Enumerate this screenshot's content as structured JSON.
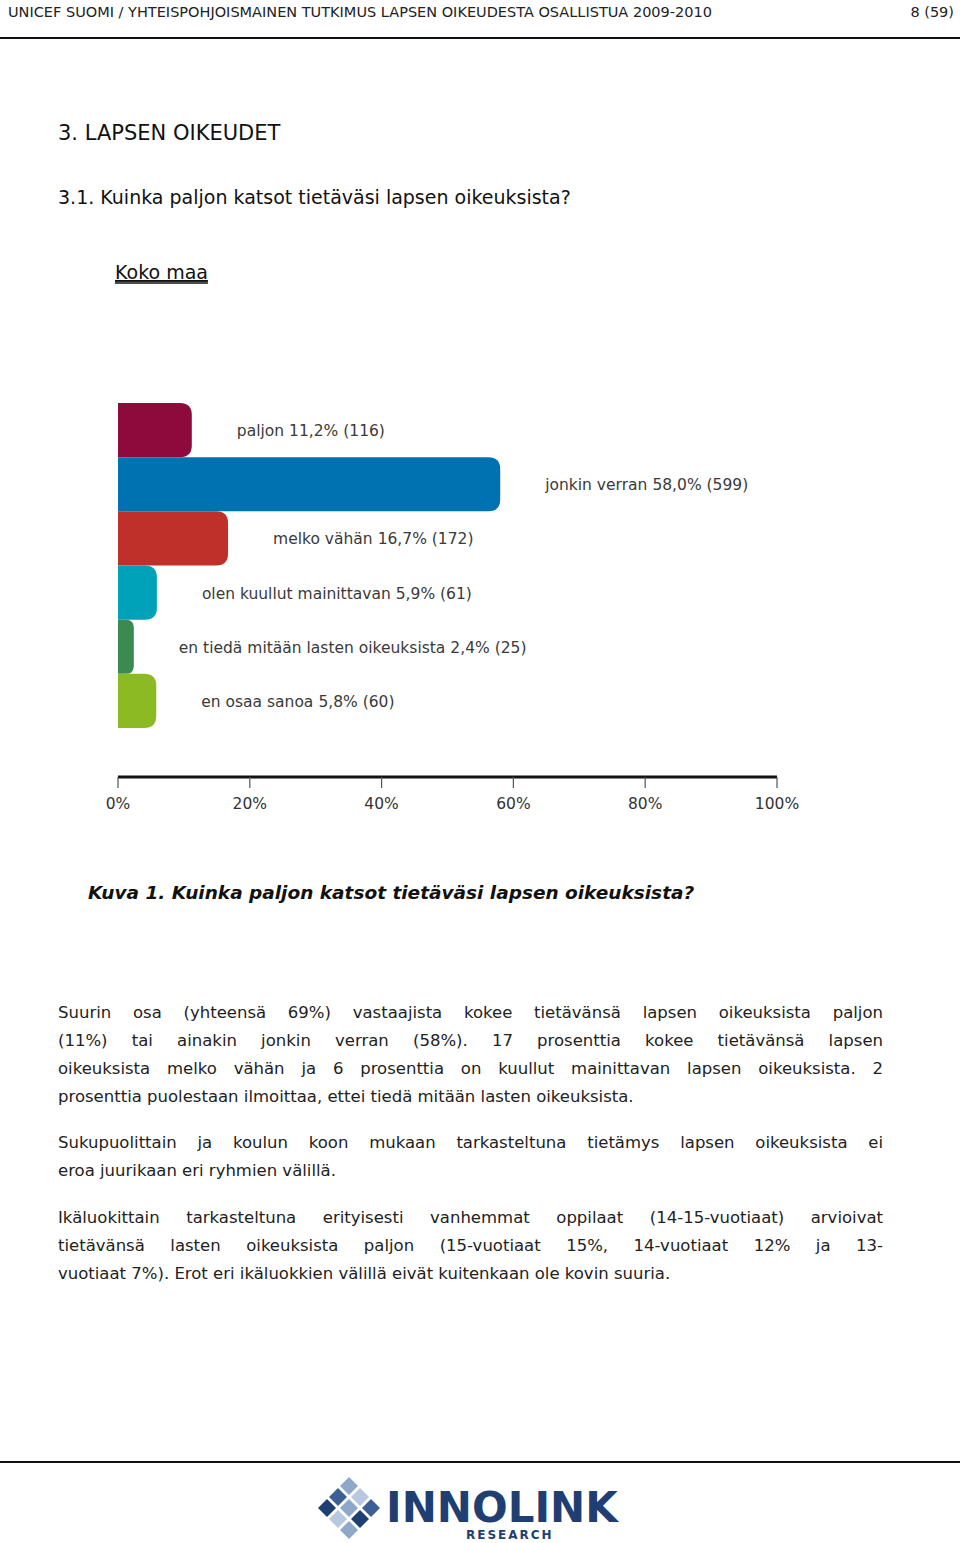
{
  "header": {
    "title": "UNICEF SUOMI / YHTEISPOHJOISMAINEN TUTKIMUS LAPSEN OIKEUDESTA OSALLISTUA 2009-2010",
    "page": "8 (59)"
  },
  "section_title": "3. LAPSEN OIKEUDET",
  "subsection_title": "3.1. Kuinka paljon katsot tietäväsi lapsen oikeuksista?",
  "chart_data": {
    "type": "bar",
    "title": "Koko maa",
    "orientation": "horizontal",
    "categories": [
      "paljon",
      "jonkin verran",
      "melko vähän",
      "olen kuullut mainittavan",
      "en tiedä mitään lasten oikeuksista",
      "en osaa sanoa"
    ],
    "values": [
      11.2,
      58.0,
      16.7,
      5.9,
      2.4,
      5.8
    ],
    "value_labels": [
      "11,2% (116)",
      "58,0% (599)",
      "16,7% (172)",
      "5,9% (61)",
      "2,4% (25)",
      "5,8% (60)"
    ],
    "data_labels": true,
    "colors": [
      "#8e0a3c",
      "#0071b1",
      "#c0302b",
      "#00a2b9",
      "#3a8a52",
      "#8cba22"
    ],
    "xlim": [
      0,
      100
    ],
    "xticks": [
      {
        "value": 0,
        "label": "0%"
      },
      {
        "value": 20,
        "label": "20%"
      },
      {
        "value": 40,
        "label": "40%"
      },
      {
        "value": 60,
        "label": "60%"
      },
      {
        "value": 80,
        "label": "80%"
      },
      {
        "value": 100,
        "label": "100%"
      }
    ],
    "grid": false
  },
  "caption": "Kuva 1. Kuinka paljon katsot tietäväsi lapsen oikeuksista?",
  "paragraphs": [
    [
      "Suurin osa (yhteensä 69%) vastaajista kokee tietävänsä lapsen oikeuksista paljon",
      "(11%) tai ainakin jonkin verran (58%). 17 prosenttia kokee tietävänsä lapsen",
      "oikeuksista melko vähän ja 6 prosenttia on kuullut mainittavan lapsen oikeuksista. 2",
      "prosenttia puolestaan ilmoittaa, ettei tiedä mitään lasten oikeuksista."
    ],
    [
      "Sukupuolittain ja koulun koon mukaan tarkasteltuna tietämys lapsen oikeuksista ei",
      "eroa juurikaan eri ryhmien välillä."
    ],
    [
      "Ikäluokittain tarkasteltuna erityisesti vanhemmat oppilaat (14-15-vuotiaat) arvioivat",
      "tietävänsä lasten oikeuksista paljon (15-vuotiaat 15%, 14-vuotiaat 12% ja 13-",
      "vuotiaat 7%). Erot eri ikäluokkien välillä eivät kuitenkaan ole kovin suuria."
    ]
  ],
  "footer": {
    "logo": "INNOLINK",
    "logo_subtitle": "RESEARCH"
  }
}
